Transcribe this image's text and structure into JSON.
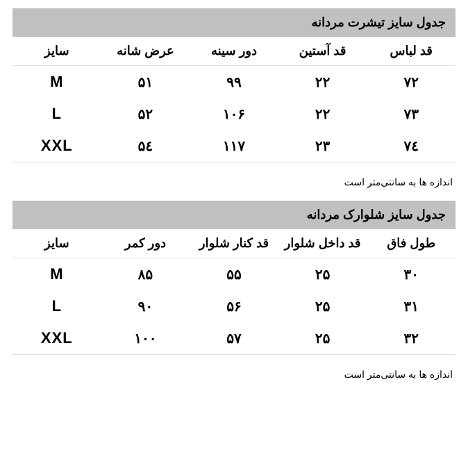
{
  "colors": {
    "title_bg": "#c0c0c0",
    "text": "#000000",
    "border": "#e0e0e0",
    "background": "#ffffff"
  },
  "typography": {
    "title_fontsize": 18,
    "header_fontsize": 18,
    "cell_fontsize": 20,
    "footnote_fontsize": 14,
    "font_family": "Tahoma"
  },
  "tables": [
    {
      "title": "جدول سایز تیشرت مردانه",
      "columns": [
        "قد لباس",
        "قد آستین",
        "دور سینه",
        "عرض شانه",
        "سایز"
      ],
      "rows": [
        [
          "۷۲",
          "۲۲",
          "۹۹",
          "۵۱",
          "M"
        ],
        [
          "۷۳",
          "۲۲",
          "۱۰۶",
          "۵۲",
          "L"
        ],
        [
          "۷٤",
          "۲۳",
          "۱۱۷",
          "۵٤",
          "XXL"
        ]
      ],
      "footnote": "اندازه ها به سانتی‌متر است"
    },
    {
      "title": "جدول سایز شلوارک مردانه",
      "columns": [
        "طول فاق",
        "قد داخل شلوار",
        "قد کنار شلوار",
        "دور کمر",
        "سایز"
      ],
      "rows": [
        [
          "۳۰",
          "۲۵",
          "۵۵",
          "۸۵",
          "M"
        ],
        [
          "۳۱",
          "۲۵",
          "۵۶",
          "۹۰",
          "L"
        ],
        [
          "۳۲",
          "۲۵",
          "۵۷",
          "۱۰۰",
          "XXL"
        ]
      ],
      "footnote": "اندازه ها به سانتی‌متر است"
    }
  ]
}
